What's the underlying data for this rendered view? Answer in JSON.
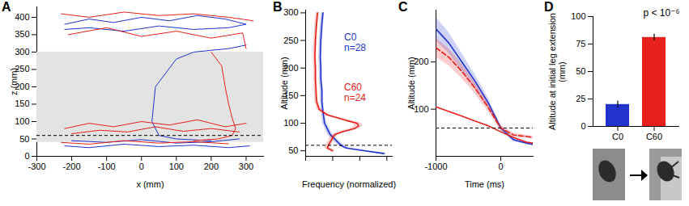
{
  "chart_data": [
    {
      "type": "line",
      "title": "A",
      "xlabel": "x (mm)",
      "ylabel": "z (mm)",
      "xlim": [
        -300,
        350
      ],
      "xticks": [
        -300,
        -200,
        -100,
        0,
        100,
        200,
        300
      ],
      "ylim": [
        0,
        430
      ],
      "yticks": [
        0,
        50,
        100,
        150,
        200,
        250,
        300,
        350,
        400
      ],
      "band": [
        40,
        300
      ],
      "hline": 60,
      "series": [
        {
          "color": "#2233cc",
          "x": [
            -220,
            -150,
            -80,
            0,
            80,
            160,
            240,
            300,
            250,
            150,
            50,
            -50,
            -150,
            -220
          ],
          "y": [
            380,
            395,
            385,
            400,
            390,
            405,
            395,
            380,
            370,
            365,
            375,
            360,
            370,
            365
          ]
        },
        {
          "color": "#2233cc",
          "x": [
            300,
            250,
            200,
            150,
            100,
            40,
            30,
            50,
            100,
            200
          ],
          "y": [
            320,
            310,
            305,
            300,
            280,
            200,
            100,
            60,
            50,
            45
          ]
        },
        {
          "color": "#2233cc",
          "x": [
            -220,
            -150,
            -50,
            50,
            150,
            250,
            310
          ],
          "y": [
            30,
            25,
            35,
            28,
            32,
            25,
            30
          ]
        },
        {
          "color": "#2233cc",
          "x": [
            -200,
            -100,
            0,
            100,
            200,
            280
          ],
          "y": [
            45,
            40,
            48,
            38,
            42,
            50
          ]
        },
        {
          "color": "#e8201c",
          "x": [
            -230,
            -150,
            -50,
            50,
            150,
            250,
            320
          ],
          "y": [
            410,
            400,
            415,
            405,
            410,
            400,
            390
          ]
        },
        {
          "color": "#e8201c",
          "x": [
            -210,
            -100,
            0,
            100,
            200,
            290,
            300
          ],
          "y": [
            350,
            370,
            345,
            360,
            340,
            355,
            310
          ]
        },
        {
          "color": "#e8201c",
          "x": [
            -220,
            -150,
            -80,
            0,
            80,
            160,
            240,
            300
          ],
          "y": [
            80,
            95,
            85,
            100,
            90,
            105,
            85,
            95
          ]
        },
        {
          "color": "#e8201c",
          "x": [
            -200,
            -120,
            -40,
            40,
            120,
            200,
            280
          ],
          "y": [
            65,
            75,
            70,
            85,
            72,
            80,
            70
          ]
        },
        {
          "color": "#e8201c",
          "x": [
            200,
            230,
            240,
            250,
            260,
            270,
            260,
            220,
            150
          ],
          "y": [
            300,
            260,
            200,
            150,
            110,
            80,
            60,
            50,
            45
          ]
        },
        {
          "color": "#e8201c",
          "x": [
            -230,
            -150,
            -50,
            50,
            150,
            250
          ],
          "y": [
            40,
            35,
            45,
            38,
            42,
            36
          ]
        }
      ]
    },
    {
      "type": "line",
      "title": "B",
      "xlabel": "Frequency (normalized)",
      "ylabel": "Altitude (mm)",
      "xlim": [
        0,
        0.016
      ],
      "xticks": [
        0,
        0.005,
        0.01,
        0.015
      ],
      "tick_labels": "y",
      "ylim": [
        40,
        305
      ],
      "yticks": [
        50,
        100,
        150,
        200,
        250,
        300
      ],
      "hline": 60,
      "series": [
        {
          "name": "C0",
          "label": "n=28",
          "color": "#2233cc",
          "y": [
            300,
            280,
            250,
            220,
            200,
            180,
            160,
            140,
            120,
            100,
            90,
            80,
            70,
            60,
            55,
            50,
            45
          ],
          "x": [
            0.0032,
            0.003,
            0.0028,
            0.0027,
            0.0028,
            0.0028,
            0.003,
            0.003,
            0.0032,
            0.0035,
            0.004,
            0.0045,
            0.0055,
            0.0065,
            0.0075,
            0.011,
            0.0145
          ],
          "x_error": [
            0.0003,
            0.0003,
            0.0003,
            0.0003,
            0.0003,
            0.0003,
            0.0003,
            0.0003,
            0.0003,
            0.0004,
            0.0004,
            0.0005,
            0.0005,
            0.0006,
            0.0006,
            0.0008,
            0.001
          ]
        },
        {
          "name": "C60",
          "label": "n=24",
          "color": "#e8201c",
          "y": [
            300,
            280,
            250,
            220,
            200,
            180,
            160,
            140,
            125,
            115,
            105,
            100,
            95,
            90,
            85,
            80,
            75,
            70,
            65,
            60,
            55,
            50
          ],
          "x": [
            0.0022,
            0.002,
            0.0018,
            0.0017,
            0.0018,
            0.0018,
            0.0019,
            0.002,
            0.0025,
            0.004,
            0.0075,
            0.0095,
            0.0098,
            0.009,
            0.007,
            0.0055,
            0.005,
            0.0048,
            0.0045,
            0.0042,
            0.004,
            0.005
          ],
          "x_error": [
            0.0003,
            0.0003,
            0.0003,
            0.0003,
            0.0003,
            0.0003,
            0.0003,
            0.0003,
            0.0004,
            0.0005,
            0.0007,
            0.0008,
            0.0008,
            0.0008,
            0.0007,
            0.0006,
            0.0006,
            0.0005,
            0.0005,
            0.0005,
            0.0005,
            0.0006
          ]
        }
      ]
    },
    {
      "type": "line",
      "title": "C",
      "xlabel": "Time (ms)",
      "ylabel": "Altitude (mm)",
      "xlim": [
        -1000,
        500
      ],
      "xticks": [
        -1000,
        0
      ],
      "ylim": [
        0,
        310
      ],
      "yticks": [
        100,
        200
      ],
      "hline": 60,
      "series": [
        {
          "color": "#2233cc",
          "line_style": "solid",
          "x": [
            -1000,
            -800,
            -600,
            -400,
            -200,
            0,
            200,
            400,
            500
          ],
          "y": [
            270,
            240,
            200,
            160,
            115,
            60,
            35,
            28,
            25
          ],
          "y_error": [
            25,
            22,
            18,
            14,
            10,
            6,
            4,
            3,
            3
          ]
        },
        {
          "color": "#e8201c",
          "line_style": "dashed",
          "x": [
            -1000,
            -800,
            -600,
            -400,
            -200,
            0,
            200,
            400,
            500
          ],
          "y": [
            230,
            210,
            180,
            145,
            105,
            60,
            45,
            42,
            40
          ],
          "y_error": [
            20,
            18,
            15,
            12,
            9,
            6,
            4,
            3,
            3
          ]
        },
        {
          "color": "#e8201c",
          "line_style": "solid",
          "x": [
            -1000,
            -800,
            -600,
            -400,
            -200,
            0,
            200,
            400,
            500
          ],
          "y": [
            105,
            95,
            85,
            75,
            65,
            52,
            40,
            30,
            28
          ]
        }
      ]
    },
    {
      "type": "bar",
      "title": "D",
      "ylabel": "Altitude at initial leg extension (mm)",
      "categories": [
        "C0",
        "C60"
      ],
      "values": [
        20,
        81
      ],
      "errors": [
        3,
        3
      ],
      "colors": [
        "#2233cc",
        "#e8201c"
      ],
      "ylim": [
        0,
        100
      ],
      "yticks": [
        0,
        25,
        50,
        75,
        100
      ],
      "annotation": "p < 10⁻⁶"
    }
  ]
}
